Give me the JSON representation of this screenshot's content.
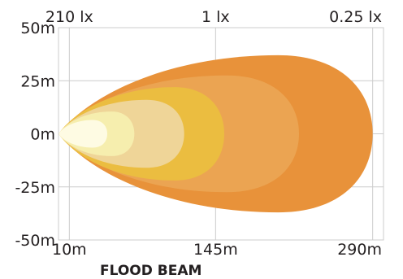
{
  "chart_data": {
    "type": "area",
    "title": "FLOOD BEAM",
    "xlabel": "",
    "ylabel": "",
    "x_ticks": [
      {
        "value": 10,
        "label": "10m"
      },
      {
        "value": 145,
        "label": "145m"
      },
      {
        "value": 290,
        "label": "290m"
      }
    ],
    "y_ticks": [
      {
        "value": 50,
        "label": "50m"
      },
      {
        "value": 25,
        "label": "25m"
      },
      {
        "value": 0,
        "label": "0m"
      },
      {
        "value": -25,
        "label": "-25m"
      },
      {
        "value": -50,
        "label": "-50m"
      }
    ],
    "lux_ticks": [
      {
        "value": 10,
        "label": "210 lx"
      },
      {
        "value": 145,
        "label": "1 lx"
      },
      {
        "value": 290,
        "label": "0.25 lx"
      }
    ],
    "xlim": [
      0,
      300
    ],
    "ylim": [
      -50,
      50
    ],
    "grid": true,
    "series": [
      {
        "reach_m": 290,
        "half_width_m": 37,
        "color": "#e8923a"
      },
      {
        "reach_m": 222,
        "half_width_m": 27.5,
        "color": "#eba452"
      },
      {
        "reach_m": 153,
        "half_width_m": 22,
        "color": "#ebbd40"
      },
      {
        "reach_m": 116,
        "half_width_m": 16,
        "color": "#efd598"
      },
      {
        "reach_m": 70,
        "half_width_m": 10.5,
        "color": "#f6eeae"
      },
      {
        "reach_m": 45,
        "half_width_m": 6.5,
        "color": "#fefbe3"
      }
    ]
  }
}
